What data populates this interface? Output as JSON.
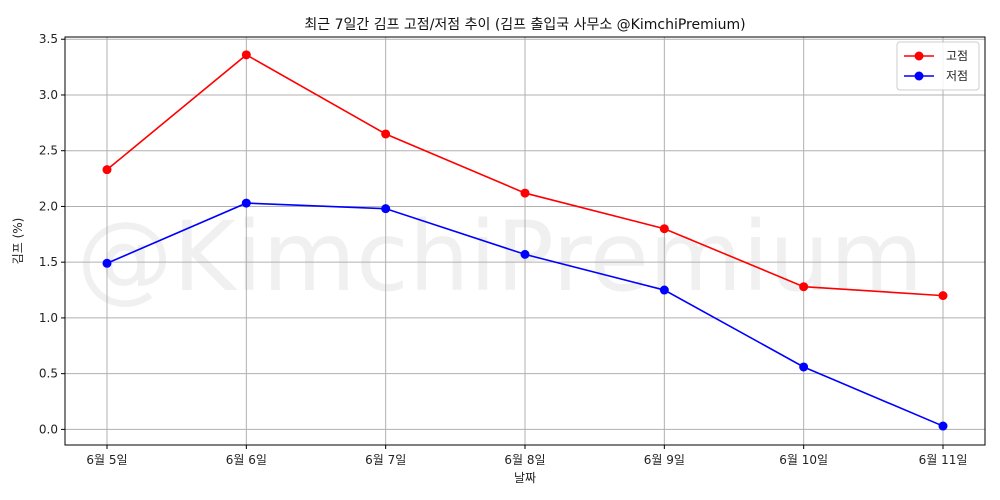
{
  "chart_data": {
    "type": "line",
    "title": "최근 7일간 김프 고점/저점 추이 (김프 출입국 사무소 @KimchiPremium)",
    "xlabel": "날짜",
    "ylabel": "김프 (%)",
    "categories": [
      "6월 5일",
      "6월 6일",
      "6월 7일",
      "6월 8일",
      "6월 9일",
      "6월 10일",
      "6월 11일"
    ],
    "ylim": [
      -0.14,
      3.52
    ],
    "yticks": [
      0.0,
      0.5,
      1.0,
      1.5,
      2.0,
      2.5,
      3.0,
      3.5
    ],
    "ytick_labels": [
      "0.0",
      "0.5",
      "1.0",
      "1.5",
      "2.0",
      "2.5",
      "3.0",
      "3.5"
    ],
    "grid": true,
    "legend_position": "top-right",
    "series": [
      {
        "name": "고점",
        "color": "#ff0000",
        "values": [
          2.33,
          3.36,
          2.65,
          2.12,
          1.8,
          1.28,
          1.2
        ]
      },
      {
        "name": "저점",
        "color": "#0000ff",
        "values": [
          1.49,
          2.03,
          1.98,
          1.57,
          1.25,
          0.56,
          0.03
        ]
      }
    ],
    "watermark": "@KimchiPremium"
  }
}
